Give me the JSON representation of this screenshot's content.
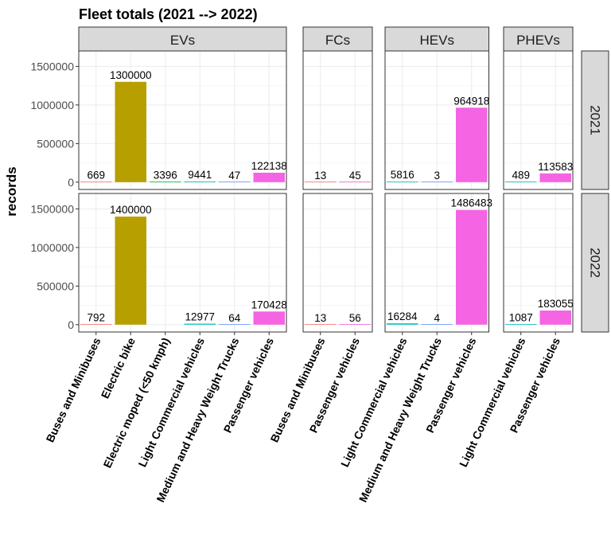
{
  "chart_data": {
    "type": "bar",
    "title": "Fleet totals (2021 --> 2022)",
    "ylabel": "records",
    "xlabel": "",
    "ylim": [
      0,
      1700000
    ],
    "yticks": [
      0,
      500000,
      1000000,
      1500000
    ],
    "ytick_labels": [
      "0",
      "500000",
      "1000000",
      "1500000"
    ],
    "grid": true,
    "facet_cols": [
      "EVs",
      "FCs",
      "HEVs",
      "PHEVs"
    ],
    "facet_rows": [
      "2021",
      "2022"
    ],
    "categories": {
      "EVs": [
        "Buses and Minibuses",
        "Electric bike",
        "Electric moped (<50 kmph)",
        "Light Commercial vehicles",
        "Medium and Heavy Weight Trucks",
        "Passenger vehicles"
      ],
      "FCs": [
        "Buses and Minibuses",
        "Passenger vehicles"
      ],
      "HEVs": [
        "Light Commercial vehicles",
        "Medium and Heavy Weight Trucks",
        "Passenger vehicles"
      ],
      "PHEVs": [
        "Light Commercial vehicles",
        "Passenger vehicles"
      ]
    },
    "category_colors": {
      "Buses and Minibuses": "#F8766D",
      "Electric bike": "#B79F00",
      "Electric moped (<50 kmph)": "#00BA38",
      "Light Commercial vehicles": "#00BFC4",
      "Medium and Heavy Weight Trucks": "#619CFF",
      "Passenger vehicles": "#F564E3"
    },
    "values": {
      "2021": {
        "EVs": [
          669,
          1300000,
          3396,
          9441,
          47,
          122138
        ],
        "FCs": [
          13,
          45
        ],
        "HEVs": [
          5816,
          3,
          964918
        ],
        "PHEVs": [
          489,
          113583
        ]
      },
      "2022": {
        "EVs": [
          792,
          1400000,
          null,
          12977,
          64,
          170428
        ],
        "FCs": [
          13,
          56
        ],
        "HEVs": [
          16284,
          4,
          1486483
        ],
        "PHEVs": [
          1087,
          183055
        ]
      }
    }
  }
}
